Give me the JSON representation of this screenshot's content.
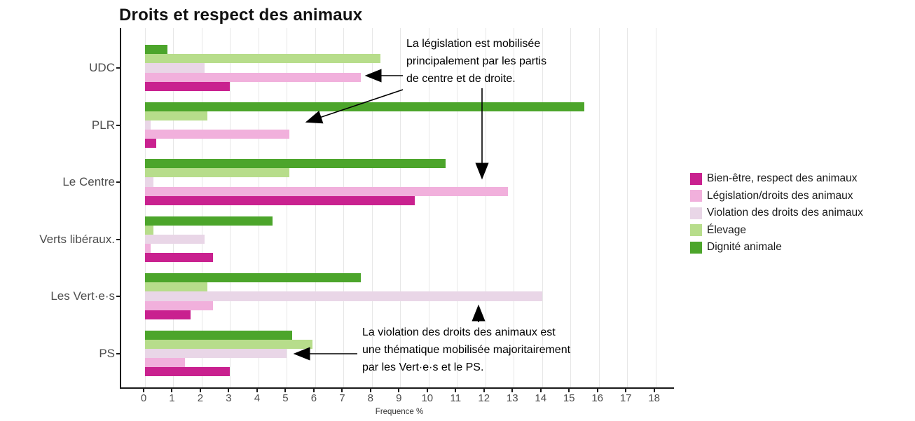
{
  "chart_data": {
    "type": "bar",
    "orientation": "horizontal",
    "title": "Droits et respect des animaux",
    "xlabel": "Frequence %",
    "xlim": [
      0,
      18
    ],
    "xticks": [
      0,
      1,
      2,
      3,
      4,
      5,
      6,
      7,
      8,
      9,
      10,
      11,
      12,
      13,
      14,
      15,
      16,
      17,
      18
    ],
    "grid": "vertical-light-gray",
    "legend_position": "right",
    "categories": [
      "UDC",
      "PLR",
      "Le Centre",
      "Verts libéraux.",
      "Les Vert·e·s",
      "PS"
    ],
    "series": [
      {
        "name": "Bien-être, respect des animaux",
        "color": "#c9218f",
        "values": [
          3.0,
          0.4,
          9.5,
          2.4,
          1.6,
          3.0
        ]
      },
      {
        "name": "Législation/droits des animaux",
        "color": "#f1b0dc",
        "values": [
          7.6,
          5.1,
          12.8,
          0.2,
          2.4,
          1.4
        ]
      },
      {
        "name": "Violation des droits des animaux",
        "color": "#e9d6e7",
        "values": [
          2.1,
          0.2,
          0.3,
          2.1,
          14.0,
          5.0
        ]
      },
      {
        "name": "Élevage",
        "color": "#b7dd8b",
        "values": [
          8.3,
          2.2,
          5.1,
          0.3,
          2.2,
          5.9
        ]
      },
      {
        "name": "Dignité animale",
        "color": "#4ca52b",
        "values": [
          0.8,
          15.5,
          10.6,
          4.5,
          7.6,
          5.2
        ]
      }
    ],
    "bar_order_within_group_top_to_bottom": [
      "Dignité animale",
      "Élevage",
      "Violation des droits des animaux",
      "Législation/droits des animaux",
      "Bien-être, respect des animaux"
    ]
  },
  "annotations": {
    "legislation": "La législation est mobilisée\nprincipalement par les partis\nde centre et de droite.",
    "violation": "La violation des droits des animaux est\nune thématique mobilisée majoritairement\npar les Vert·e·s et le PS."
  },
  "colors": {
    "axis": "#1a1a1a",
    "grid": "#e7e7e7",
    "tick_text": "#4d4d4d",
    "annotation_arrow": "#000000"
  }
}
